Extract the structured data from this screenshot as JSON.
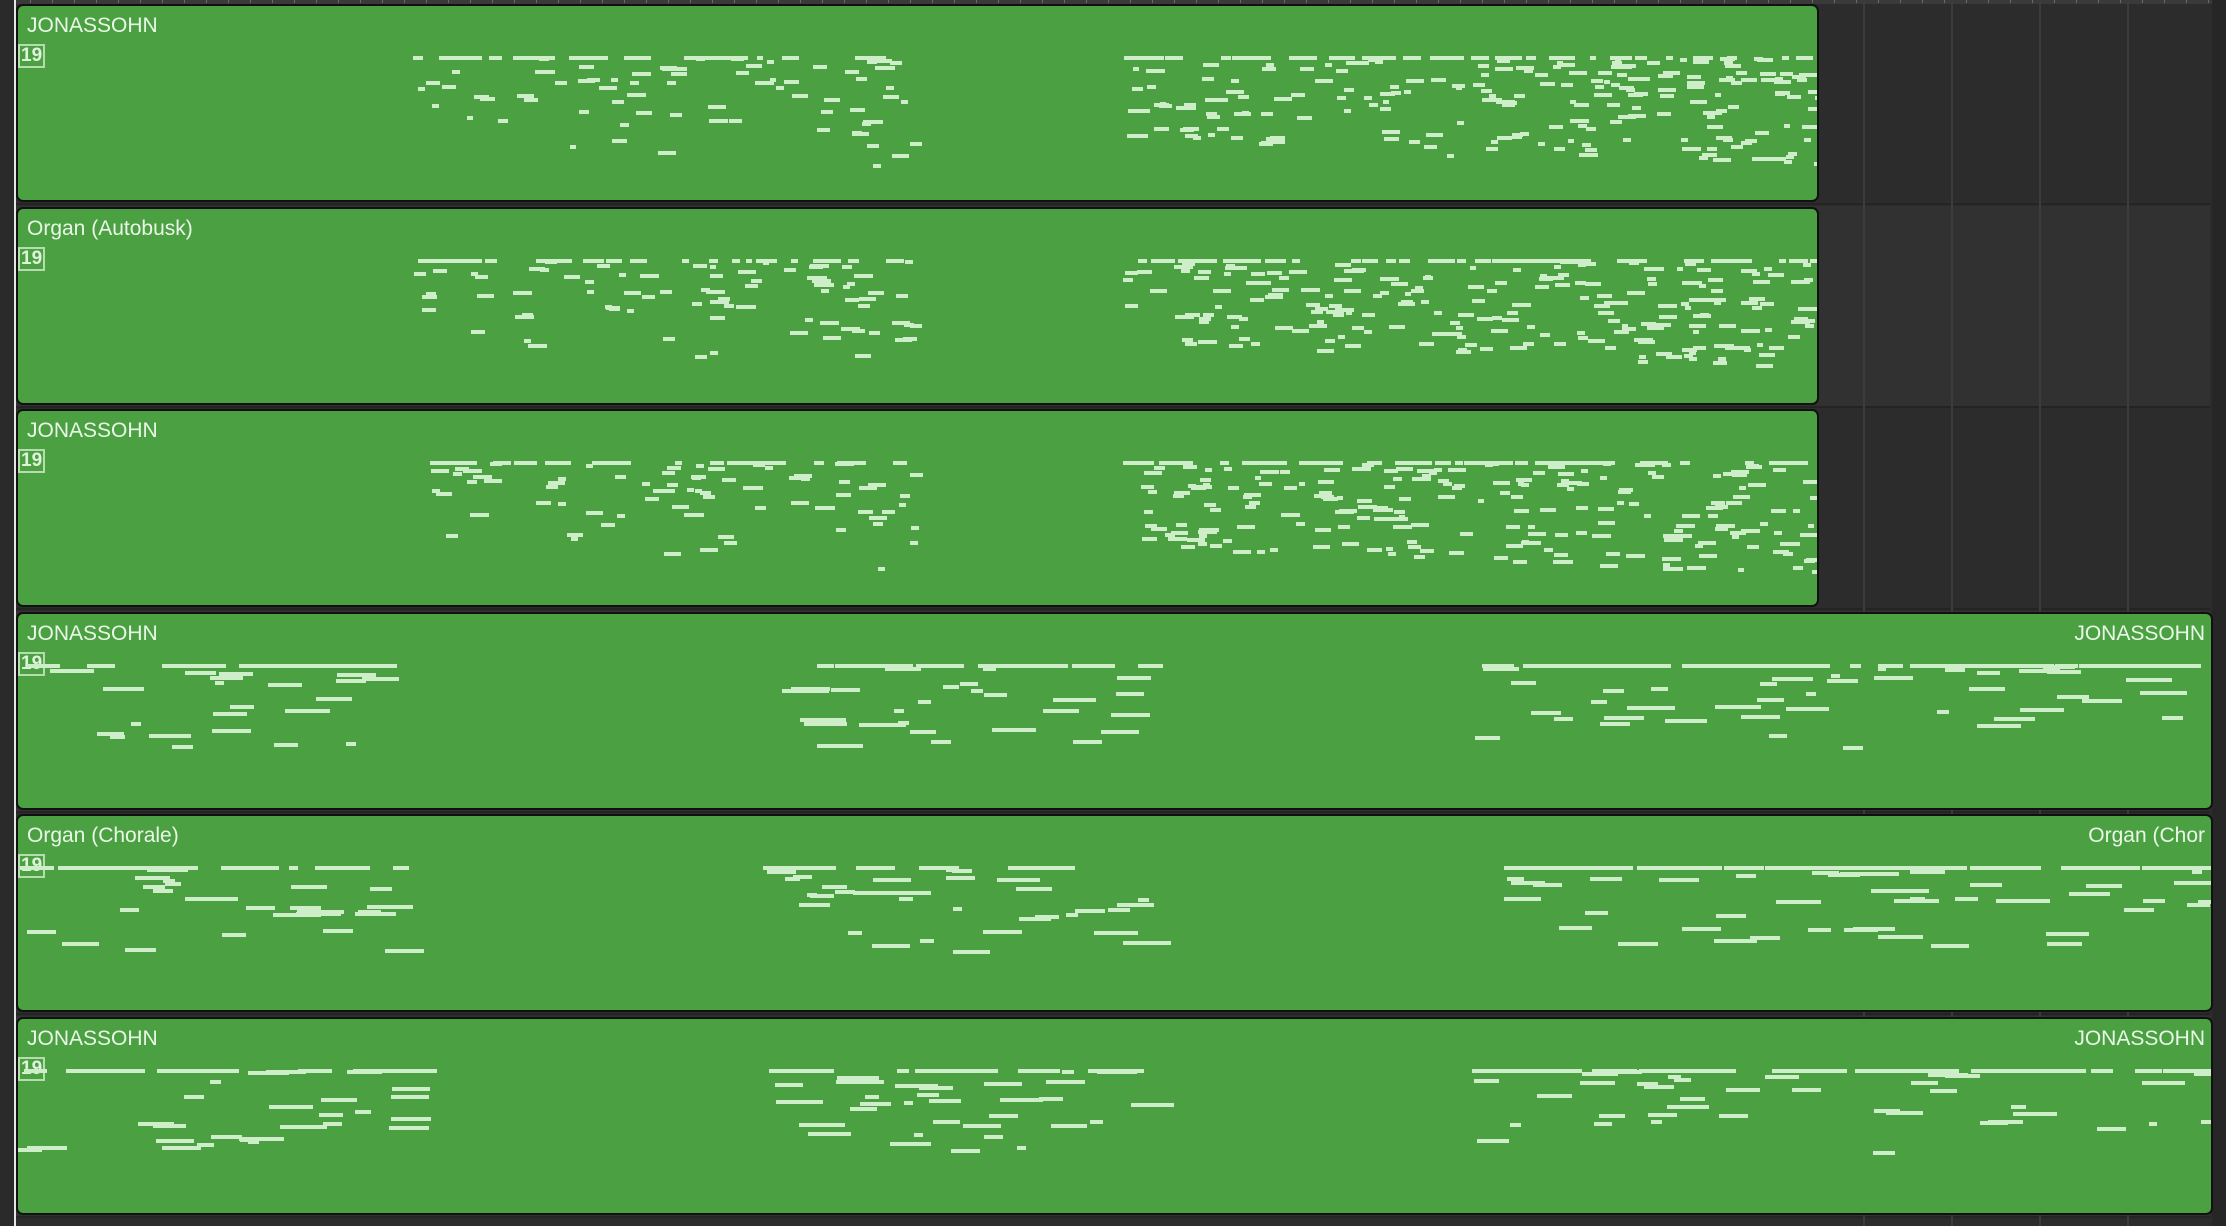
{
  "colors": {
    "region": "#4ba142",
    "note": "#cdeec8",
    "background": "#2c2c2c"
  },
  "regions": [
    {
      "name": "JONASSOHN",
      "badge": "19",
      "tail_name": ""
    },
    {
      "name": "Organ (Autobusk)",
      "badge": "19",
      "tail_name": ""
    },
    {
      "name": "JONASSOHN",
      "badge": "19",
      "tail_name": ""
    },
    {
      "name": "JONASSOHN",
      "badge": "19",
      "tail_name": "JONASSOHN"
    },
    {
      "name": "Organ (Chorale)",
      "badge": "19",
      "tail_name": "Organ (Chor"
    },
    {
      "name": "JONASSOHN",
      "badge": "19",
      "tail_name": "JONASSOHN"
    }
  ]
}
